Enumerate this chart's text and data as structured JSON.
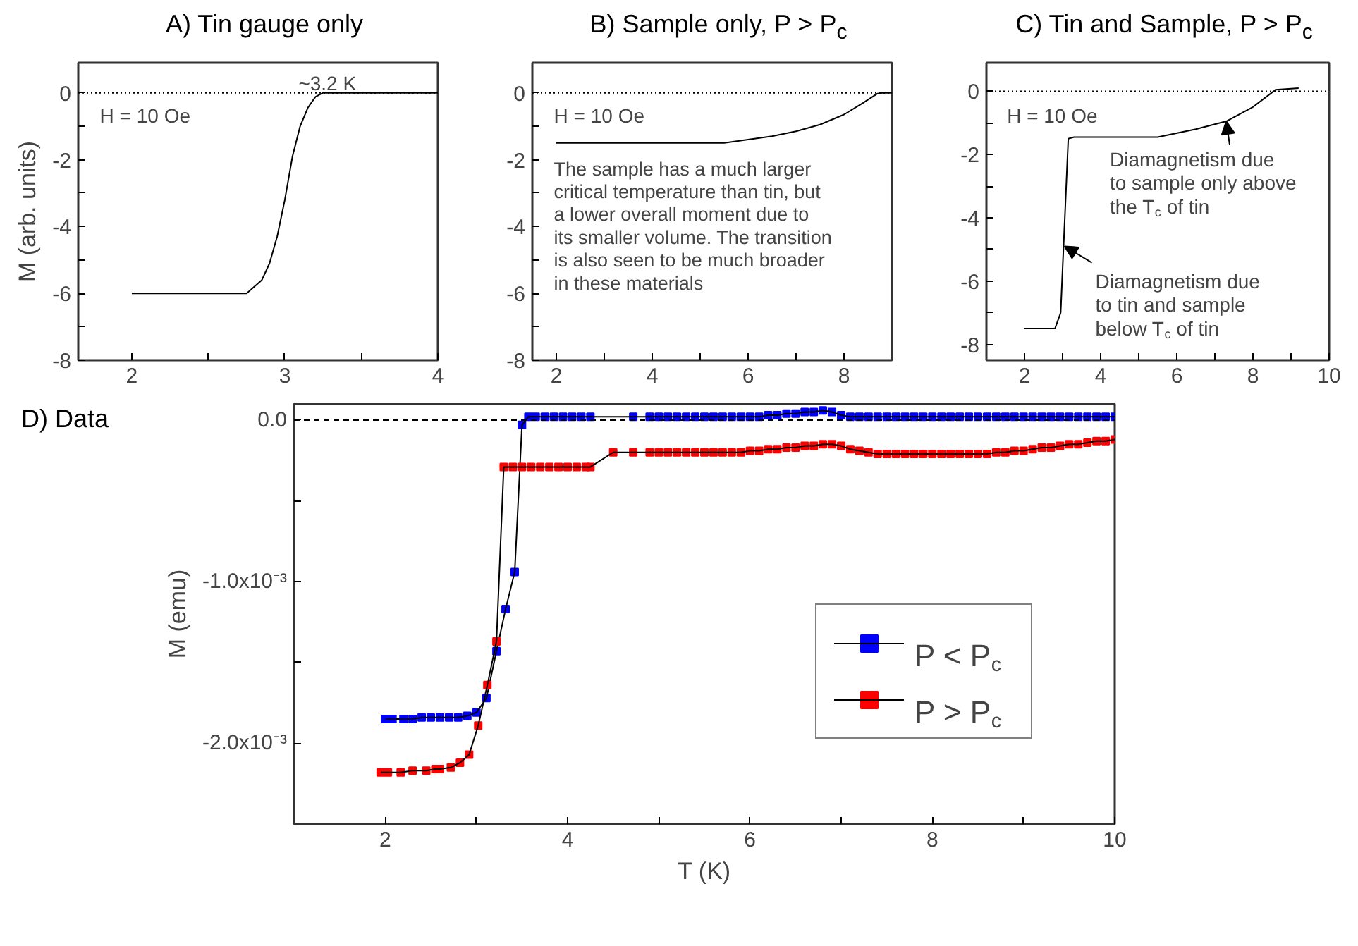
{
  "chart_data": [
    {
      "type": "line",
      "title": "A) Tin gauge only",
      "ylabel": "M (arb. units)",
      "xlim": [
        1.65,
        4
      ],
      "ylim": [
        -8,
        0.9
      ],
      "xticks": [
        2,
        {
          "value": 2.5,
          "label": null
        },
        3,
        {
          "value": 3.5,
          "label": null
        },
        4
      ],
      "yticks": [
        -8,
        {
          "value": -7,
          "label": null
        },
        -6,
        {
          "value": -5,
          "label": null
        },
        -4,
        {
          "value": -3,
          "label": null
        },
        -2,
        {
          "value": -1,
          "label": null
        },
        0
      ],
      "grid": false,
      "marker": "none",
      "line_style": "solid",
      "ref_lines": [
        {
          "axis": "y",
          "value": 0,
          "line_style": "dotted"
        }
      ],
      "annotations": [
        {
          "text": "~3.2 K",
          "x": 3.2,
          "y": 0
        },
        "H = 10 Oe"
      ],
      "series": [
        {
          "color": "#000000",
          "x": [
            2,
            2.5,
            2.75,
            2.85,
            2.9,
            2.95,
            3.0,
            3.05,
            3.1,
            3.15,
            3.2,
            3.25,
            3.5,
            4
          ],
          "values": [
            -6,
            -6,
            -6,
            -5.6,
            -5.1,
            -4.3,
            -3.2,
            -1.9,
            -1.0,
            -0.45,
            -0.12,
            0,
            0,
            0
          ]
        }
      ]
    },
    {
      "type": "line",
      "title": "B) Sample only, P > P$_{c}$",
      "xlim": [
        1.5,
        9
      ],
      "ylim": [
        -8,
        0.9
      ],
      "xticks": [
        2,
        {
          "value": 3,
          "label": null
        },
        4,
        {
          "value": 5,
          "label": null
        },
        6,
        {
          "value": 7,
          "label": null
        },
        8
      ],
      "yticks": [
        -8,
        {
          "value": -7,
          "label": null
        },
        -6,
        {
          "value": -5,
          "label": null
        },
        -4,
        {
          "value": -3,
          "label": null
        },
        -2,
        {
          "value": -1,
          "label": null
        },
        0
      ],
      "grid": false,
      "marker": "none",
      "line_style": "solid",
      "ref_lines": [
        {
          "axis": "y",
          "value": 0,
          "line_style": "dotted"
        }
      ],
      "annotations": [
        "H = 10 Oe",
        "The sample has a much larger\ncritical temperature than tin, but\na lower overall moment due to\nits smaller volume. The transition\nis also seen to be much broader\nin these materials"
      ],
      "series": [
        {
          "color": "#000000",
          "x": [
            2,
            5.5,
            6,
            6.5,
            7,
            7.5,
            8,
            8.4,
            8.7,
            8.8,
            9
          ],
          "values": [
            -1.5,
            -1.5,
            -1.4,
            -1.3,
            -1.15,
            -0.95,
            -0.65,
            -0.3,
            -0.02,
            0,
            0
          ]
        }
      ]
    },
    {
      "type": "line",
      "title": "C) Tin and Sample, P > P$_{c}$",
      "xlim": [
        1,
        10
      ],
      "ylim": [
        -8.5,
        0.9
      ],
      "xticks": [
        2,
        {
          "value": 3,
          "label": null
        },
        4,
        {
          "value": 5,
          "label": null
        },
        6,
        {
          "value": 7,
          "label": null
        },
        8,
        {
          "value": 9,
          "label": null
        },
        10
      ],
      "yticks": [
        -8,
        {
          "value": -7,
          "label": null
        },
        -6,
        {
          "value": -5,
          "label": null
        },
        -4,
        {
          "value": -3,
          "label": null
        },
        -2,
        {
          "value": -1,
          "label": null
        },
        0
      ],
      "grid": false,
      "marker": "none",
      "line_style": "solid",
      "ref_lines": [
        {
          "axis": "y",
          "value": 0,
          "line_style": "dotted"
        }
      ],
      "annotations": [
        "H = 10 Oe",
        {
          "text": "Diamagnetism due\nto sample only above\nthe T$_{c}$ of tin",
          "x": 7.3,
          "y": -0.95
        },
        {
          "text": "Diamagnetism due\nto tin and sample\nbelow T$_{c}$ of tin",
          "x": 3.05,
          "y": -4.9
        }
      ],
      "series": [
        {
          "color": "#000000",
          "x": [
            2,
            2.8,
            2.95,
            3.15,
            3.3,
            5.5,
            6.5,
            7.3,
            8,
            8.6,
            9.2
          ],
          "values": [
            -7.5,
            -7.5,
            -7,
            -1.5,
            -1.45,
            -1.45,
            -1.2,
            -0.95,
            -0.5,
            0.05,
            0.1
          ]
        }
      ]
    },
    {
      "type": "line",
      "title": "D) Data",
      "xlabel": "T (K)",
      "ylabel": "M (emu)",
      "xlim": [
        1,
        10
      ],
      "ylim": [
        -0.0025,
        0.0001
      ],
      "xticks": [
        2,
        {
          "value": 3,
          "label": null
        },
        4,
        {
          "value": 5,
          "label": null
        },
        6,
        {
          "value": 7,
          "label": null
        },
        8,
        {
          "value": 9,
          "label": null
        },
        10
      ],
      "yticks": [
        {
          "value": -0.002,
          "label": "-2.0x10⁻³"
        },
        {
          "value": -0.0015,
          "label": null
        },
        {
          "value": -0.001,
          "label": "-1.0x10⁻³"
        },
        {
          "value": -0.0005,
          "label": null
        },
        {
          "value": 0,
          "label": "0.0"
        }
      ],
      "grid": false,
      "marker": "square",
      "line_style": "solid",
      "legend": "bottom right",
      "ref_lines": [
        {
          "axis": "y",
          "value": 0,
          "line_style": "dashed"
        }
      ],
      "series": [
        {
          "name": "P < P$_{c}$",
          "color": "#0000ff",
          "x": [
            2.0,
            2.08,
            2.2,
            2.3,
            2.4,
            2.5,
            2.6,
            2.7,
            2.8,
            2.9,
            3.0,
            3.11,
            3.22,
            3.32,
            3.42,
            3.5,
            3.57,
            3.65,
            3.75,
            3.85,
            3.95,
            4.05,
            4.15,
            4.25,
            4.72,
            4.9,
            5.0,
            5.1,
            5.2,
            5.3,
            5.4,
            5.5,
            5.6,
            5.7,
            5.8,
            5.9,
            6.0,
            6.1,
            6.2,
            6.3,
            6.4,
            6.5,
            6.6,
            6.7,
            6.8,
            6.9,
            7.0,
            7.1,
            7.2,
            7.3,
            7.4,
            7.5,
            7.6,
            7.7,
            7.8,
            7.9,
            8.0,
            8.1,
            8.2,
            8.3,
            8.4,
            8.5,
            8.6,
            8.7,
            8.8,
            8.9,
            9.0,
            9.1,
            9.2,
            9.3,
            9.4,
            9.5,
            9.6,
            9.7,
            9.8,
            9.9,
            10.0
          ],
          "values": [
            -0.00185,
            -0.00185,
            -0.00185,
            -0.00185,
            -0.00184,
            -0.00184,
            -0.00184,
            -0.00184,
            -0.00184,
            -0.00183,
            -0.00181,
            -0.00172,
            -0.00143,
            -0.00117,
            -0.00094,
            -3e-05,
            2e-05,
            2e-05,
            2e-05,
            2e-05,
            2e-05,
            2e-05,
            2e-05,
            2e-05,
            2e-05,
            2e-05,
            2e-05,
            2e-05,
            2e-05,
            2e-05,
            2e-05,
            2e-05,
            2e-05,
            2e-05,
            2e-05,
            2e-05,
            2e-05,
            2e-05,
            3e-05,
            3e-05,
            4e-05,
            4e-05,
            5e-05,
            5e-05,
            6e-05,
            5e-05,
            3e-05,
            2e-05,
            2e-05,
            2e-05,
            2e-05,
            2e-05,
            2e-05,
            2e-05,
            2e-05,
            2e-05,
            2e-05,
            2e-05,
            2e-05,
            2e-05,
            2e-05,
            2e-05,
            2e-05,
            2e-05,
            2e-05,
            2e-05,
            2e-05,
            2e-05,
            2e-05,
            2e-05,
            2e-05,
            2e-05,
            2e-05,
            2e-05,
            2e-05,
            2e-05,
            2e-05
          ]
        },
        {
          "name": "P > P$_{c}$",
          "color": "#ff0000",
          "x": [
            1.95,
            2.03,
            2.17,
            2.3,
            2.45,
            2.55,
            2.6,
            2.72,
            2.82,
            2.92,
            3.02,
            3.12,
            3.22,
            3.3,
            3.4,
            3.5,
            3.6,
            3.7,
            3.8,
            3.9,
            4.0,
            4.1,
            4.2,
            4.25,
            4.5,
            4.72,
            4.9,
            5.0,
            5.1,
            5.2,
            5.3,
            5.4,
            5.5,
            5.6,
            5.7,
            5.8,
            5.9,
            6.0,
            6.1,
            6.2,
            6.3,
            6.4,
            6.5,
            6.6,
            6.7,
            6.8,
            6.9,
            7.0,
            7.1,
            7.2,
            7.3,
            7.4,
            7.5,
            7.6,
            7.7,
            7.8,
            7.9,
            8.0,
            8.1,
            8.2,
            8.3,
            8.4,
            8.5,
            8.6,
            8.7,
            8.8,
            8.9,
            9.0,
            9.1,
            9.2,
            9.3,
            9.4,
            9.5,
            9.6,
            9.7,
            9.8,
            9.9,
            10.0
          ],
          "values": [
            -0.00218,
            -0.00218,
            -0.00218,
            -0.00217,
            -0.00217,
            -0.00216,
            -0.00216,
            -0.00215,
            -0.00212,
            -0.00207,
            -0.00189,
            -0.00164,
            -0.00137,
            -0.00029,
            -0.00029,
            -0.00029,
            -0.00029,
            -0.00029,
            -0.00029,
            -0.00029,
            -0.00029,
            -0.00029,
            -0.00029,
            -0.00029,
            -0.0002,
            -0.0002,
            -0.0002,
            -0.0002,
            -0.0002,
            -0.0002,
            -0.0002,
            -0.0002,
            -0.0002,
            -0.0002,
            -0.0002,
            -0.0002,
            -0.0002,
            -0.00019,
            -0.00019,
            -0.00018,
            -0.00018,
            -0.00017,
            -0.00017,
            -0.00016,
            -0.00016,
            -0.00015,
            -0.00015,
            -0.00016,
            -0.00018,
            -0.00019,
            -0.0002,
            -0.00021,
            -0.00021,
            -0.00021,
            -0.00021,
            -0.00021,
            -0.00021,
            -0.00021,
            -0.00021,
            -0.00021,
            -0.00021,
            -0.00021,
            -0.00021,
            -0.00021,
            -0.0002,
            -0.0002,
            -0.00019,
            -0.00019,
            -0.00018,
            -0.00017,
            -0.00017,
            -0.00016,
            -0.00015,
            -0.00015,
            -0.00014,
            -0.00013,
            -0.00013,
            -0.00012
          ]
        }
      ]
    }
  ]
}
